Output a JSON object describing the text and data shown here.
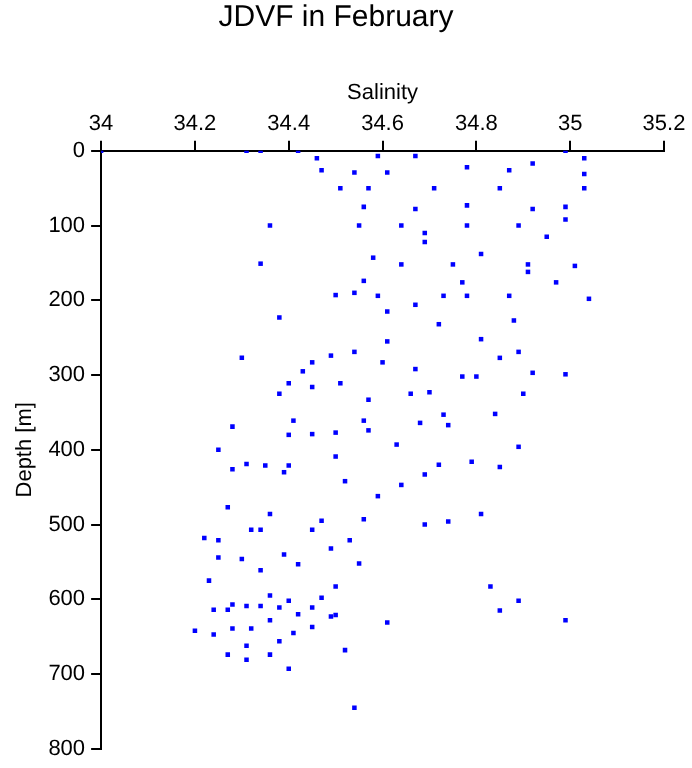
{
  "chart_data": {
    "type": "scatter",
    "title": "JDVF in February",
    "xlabel": "Salinity",
    "ylabel": "Depth [m]",
    "xlim": [
      34,
      35.2
    ],
    "xticks": [
      34,
      34.2,
      34.4,
      34.6,
      34.8,
      35,
      35.2
    ],
    "ylim": [
      800,
      0
    ],
    "yticks": [
      0,
      100,
      200,
      300,
      400,
      500,
      600,
      700,
      800
    ],
    "grid": false,
    "legend": false,
    "marker": "square",
    "series": [
      {
        "color": "#0000ff",
        "x": [
          34.0,
          34.31,
          34.34,
          34.42,
          34.46,
          34.47,
          34.51,
          34.54,
          34.59,
          34.61,
          34.67,
          34.78,
          34.87,
          34.92,
          34.99,
          35.03,
          35.03,
          35.03,
          34.57,
          34.71,
          34.85,
          34.56,
          34.67,
          34.78,
          34.92,
          34.99,
          34.36,
          34.55,
          34.64,
          34.69,
          34.78,
          34.89,
          34.95,
          34.99,
          34.69,
          34.34,
          34.58,
          34.64,
          34.75,
          34.81,
          34.91,
          35.01,
          34.56,
          34.77,
          34.91,
          34.97,
          34.5,
          34.54,
          34.59,
          34.67,
          34.73,
          34.78,
          34.87,
          35.04,
          34.61,
          34.38,
          34.72,
          34.88,
          34.61,
          34.81,
          34.3,
          34.49,
          34.54,
          34.85,
          34.89,
          34.45,
          34.6,
          34.67,
          34.99,
          34.43,
          34.4,
          34.51,
          34.45,
          34.77,
          34.8,
          34.92,
          34.9,
          34.38,
          34.57,
          34.66,
          34.7,
          34.73,
          34.84,
          34.28,
          34.41,
          34.56,
          34.74,
          34.68,
          34.4,
          34.45,
          34.5,
          34.57,
          34.25,
          34.63,
          34.89,
          34.31,
          34.35,
          34.4,
          34.39,
          34.28,
          34.5,
          34.52,
          34.59,
          34.64,
          34.69,
          34.72,
          34.79,
          34.85,
          34.27,
          34.36,
          34.47,
          34.56,
          34.69,
          34.74,
          34.81,
          34.22,
          34.25,
          34.32,
          34.34,
          34.45,
          34.49,
          34.53,
          34.25,
          34.3,
          34.34,
          34.39,
          34.42,
          34.55,
          34.23,
          34.5,
          34.83,
          34.89,
          34.85,
          34.61,
          34.99,
          34.24,
          34.27,
          34.28,
          34.31,
          34.34,
          34.36,
          34.38,
          34.4,
          34.42,
          34.45,
          34.47,
          34.49,
          34.5,
          34.2,
          34.24,
          34.28,
          34.32,
          34.36,
          34.41,
          34.45,
          34.38,
          34.31,
          34.27,
          34.31,
          34.36,
          34.4,
          34.52,
          34.54
        ],
        "values": [
          0,
          0,
          0,
          0,
          10,
          26,
          50,
          29,
          7,
          29,
          7,
          22,
          26,
          17,
          0,
          10,
          31,
          50,
          50,
          50,
          50,
          75,
          78,
          73,
          78,
          75,
          100,
          100,
          100,
          110,
          100,
          100,
          115,
          92,
          122,
          151,
          143,
          152,
          152,
          138,
          152,
          154,
          174,
          176,
          162,
          176,
          193,
          190,
          194,
          206,
          194,
          194,
          194,
          198,
          215,
          223,
          232,
          227,
          255,
          252,
          277,
          274,
          269,
          277,
          269,
          283,
          283,
          292,
          299,
          295,
          311,
          311,
          316,
          302,
          302,
          297,
          325,
          325,
          333,
          325,
          323,
          353,
          352,
          369,
          361,
          361,
          367,
          364,
          380,
          379,
          377,
          374,
          400,
          393,
          396,
          419,
          421,
          421,
          430,
          426,
          409,
          442,
          462,
          447,
          433,
          420,
          416,
          423,
          477,
          486,
          495,
          493,
          500,
          496,
          486,
          518,
          521,
          507,
          507,
          507,
          532,
          521,
          544,
          546,
          561,
          540,
          553,
          552,
          575,
          583,
          583,
          602,
          615,
          631,
          628,
          614,
          614,
          607,
          609,
          609,
          595,
          611,
          602,
          620,
          611,
          598,
          623,
          621,
          642,
          647,
          639,
          639,
          628,
          645,
          637,
          656,
          662,
          674,
          681,
          674,
          693,
          668,
          745
        ]
      }
    ]
  }
}
